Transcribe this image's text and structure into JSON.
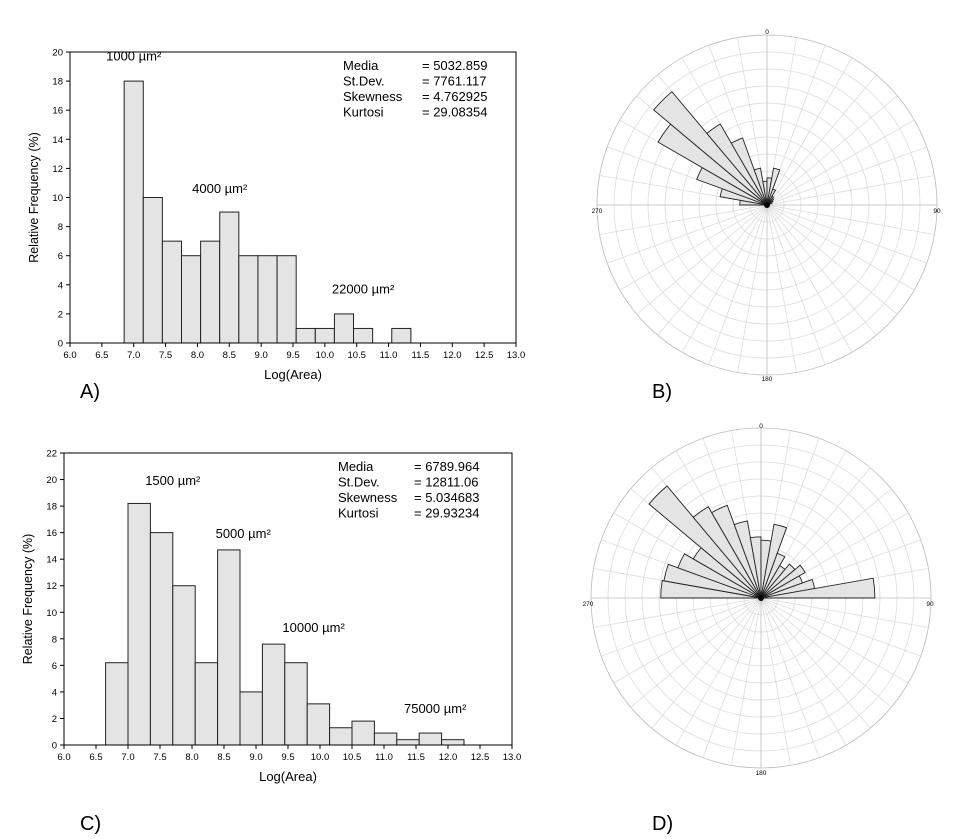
{
  "chart_data": [
    {
      "panel": "A)",
      "type": "bar",
      "xlabel": "Log(Area)",
      "ylabel": "Relative Frequency (%)",
      "xlim": [
        6.0,
        13.0
      ],
      "ylim": [
        0,
        20
      ],
      "xticks": [
        "6.0",
        "6.5",
        "7.0",
        "7.5",
        "8.0",
        "8.5",
        "9.0",
        "9.5",
        "10.0",
        "10.5",
        "11.0",
        "11.5",
        "12.0",
        "12.5",
        "13.0"
      ],
      "yticks": [
        "0",
        "2",
        "4",
        "6",
        "8",
        "10",
        "12",
        "14",
        "16",
        "18",
        "20"
      ],
      "bins": [
        {
          "x0": 6.85,
          "x1": 7.15,
          "value": 18
        },
        {
          "x0": 7.15,
          "x1": 7.45,
          "value": 10
        },
        {
          "x0": 7.45,
          "x1": 7.75,
          "value": 7
        },
        {
          "x0": 7.75,
          "x1": 8.05,
          "value": 6
        },
        {
          "x0": 8.05,
          "x1": 8.35,
          "value": 7
        },
        {
          "x0": 8.35,
          "x1": 8.65,
          "value": 9
        },
        {
          "x0": 8.65,
          "x1": 8.95,
          "value": 6
        },
        {
          "x0": 8.95,
          "x1": 9.25,
          "value": 6
        },
        {
          "x0": 9.25,
          "x1": 9.55,
          "value": 6
        },
        {
          "x0": 9.55,
          "x1": 9.85,
          "value": 1
        },
        {
          "x0": 9.85,
          "x1": 10.15,
          "value": 1
        },
        {
          "x0": 10.15,
          "x1": 10.45,
          "value": 2
        },
        {
          "x0": 10.45,
          "x1": 10.75,
          "value": 1
        },
        {
          "x0": 10.75,
          "x1": 11.05,
          "value": 0
        },
        {
          "x0": 11.05,
          "x1": 11.35,
          "value": 1
        }
      ],
      "annotations": [
        {
          "text": "1000 µm²",
          "x": 7.0,
          "y": 19.4
        },
        {
          "text": "4000 µm²",
          "x": 8.35,
          "y": 10.3
        },
        {
          "text": "22000 µm²",
          "x": 10.6,
          "y": 3.4
        }
      ],
      "stats": [
        {
          "label": "Media",
          "value": "= 5032.859"
        },
        {
          "label": "St.Dev.",
          "value": "= 7761.117"
        },
        {
          "label": "Skewness",
          "value": "= 4.762925"
        },
        {
          "label": "Kurtosi",
          "value": "= 29.08354"
        }
      ]
    },
    {
      "panel": "B)",
      "type": "rose",
      "direction_labels": [
        "0",
        "90",
        "180",
        "270"
      ],
      "ring_count": 10,
      "sector_width_deg": 10,
      "radial_max": 1.0,
      "sectors": [
        {
          "center_deg": 275,
          "value": 0.16
        },
        {
          "center_deg": 285,
          "value": 0.28
        },
        {
          "center_deg": 295,
          "value": 0.44
        },
        {
          "center_deg": 305,
          "value": 0.74
        },
        {
          "center_deg": 315,
          "value": 0.87
        },
        {
          "center_deg": 325,
          "value": 0.55
        },
        {
          "center_deg": 335,
          "value": 0.42
        },
        {
          "center_deg": 345,
          "value": 0.22
        },
        {
          "center_deg": 355,
          "value": 0.14
        },
        {
          "center_deg": 5,
          "value": 0.16
        },
        {
          "center_deg": 15,
          "value": 0.22
        },
        {
          "center_deg": 25,
          "value": 0.1
        },
        {
          "center_deg": 35,
          "value": 0.06
        },
        {
          "center_deg": 45,
          "value": 0.05
        },
        {
          "center_deg": 55,
          "value": 0.04
        },
        {
          "center_deg": 65,
          "value": 0.03
        }
      ]
    },
    {
      "panel": "C)",
      "type": "bar",
      "xlabel": "Log(Area)",
      "ylabel": "Relative Frequency (%)",
      "xlim": [
        6.0,
        13.0
      ],
      "ylim": [
        0,
        22
      ],
      "xticks": [
        "6.0",
        "6.5",
        "7.0",
        "7.5",
        "8.0",
        "8.5",
        "9.0",
        "9.5",
        "10.0",
        "10.5",
        "11.0",
        "11.5",
        "12.0",
        "12.5",
        "13.0"
      ],
      "yticks": [
        "0",
        "2",
        "4",
        "6",
        "8",
        "10",
        "12",
        "14",
        "16",
        "18",
        "20",
        "22"
      ],
      "bins": [
        {
          "x0": 6.65,
          "x1": 7.0,
          "value": 6.2
        },
        {
          "x0": 7.0,
          "x1": 7.35,
          "value": 18.2
        },
        {
          "x0": 7.35,
          "x1": 7.7,
          "value": 16.0
        },
        {
          "x0": 7.7,
          "x1": 8.05,
          "value": 12.0
        },
        {
          "x0": 8.05,
          "x1": 8.4,
          "value": 6.2
        },
        {
          "x0": 8.4,
          "x1": 8.75,
          "value": 14.7
        },
        {
          "x0": 8.75,
          "x1": 9.1,
          "value": 4.0
        },
        {
          "x0": 9.1,
          "x1": 9.45,
          "value": 7.6
        },
        {
          "x0": 9.45,
          "x1": 9.8,
          "value": 6.2
        },
        {
          "x0": 9.8,
          "x1": 10.15,
          "value": 3.1
        },
        {
          "x0": 10.15,
          "x1": 10.5,
          "value": 1.3
        },
        {
          "x0": 10.5,
          "x1": 10.85,
          "value": 1.8
        },
        {
          "x0": 10.85,
          "x1": 11.2,
          "value": 0.9
        },
        {
          "x0": 11.2,
          "x1": 11.55,
          "value": 0.4
        },
        {
          "x0": 11.55,
          "x1": 11.9,
          "value": 0.9
        },
        {
          "x0": 11.9,
          "x1": 12.25,
          "value": 0.4
        }
      ],
      "annotations": [
        {
          "text": "1500 µm²",
          "x": 7.7,
          "y": 19.6
        },
        {
          "text": "5000 µm²",
          "x": 8.8,
          "y": 15.6
        },
        {
          "text": "10000 µm²",
          "x": 9.9,
          "y": 8.5
        },
        {
          "text": "75000 µm²",
          "x": 11.8,
          "y": 2.4
        }
      ],
      "stats": [
        {
          "label": "Media",
          "value": "= 6789.964"
        },
        {
          "label": "St.Dev.",
          "value": "= 12811.06"
        },
        {
          "label": "Skewness",
          "value": "= 5.034683"
        },
        {
          "label": "Kurtosi",
          "value": "= 29.93234"
        }
      ]
    },
    {
      "panel": "D)",
      "type": "rose",
      "direction_labels": [
        "0",
        "90",
        "180",
        "270"
      ],
      "ring_count": 10,
      "sector_width_deg": 10,
      "radial_max": 1.0,
      "sectors": [
        {
          "center_deg": 275,
          "value": 0.59
        },
        {
          "center_deg": 285,
          "value": 0.58
        },
        {
          "center_deg": 295,
          "value": 0.52
        },
        {
          "center_deg": 305,
          "value": 0.46
        },
        {
          "center_deg": 315,
          "value": 0.86
        },
        {
          "center_deg": 325,
          "value": 0.62
        },
        {
          "center_deg": 335,
          "value": 0.58
        },
        {
          "center_deg": 345,
          "value": 0.46
        },
        {
          "center_deg": 355,
          "value": 0.36
        },
        {
          "center_deg": 5,
          "value": 0.34
        },
        {
          "center_deg": 15,
          "value": 0.44
        },
        {
          "center_deg": 25,
          "value": 0.28
        },
        {
          "center_deg": 35,
          "value": 0.22
        },
        {
          "center_deg": 45,
          "value": 0.26
        },
        {
          "center_deg": 55,
          "value": 0.3
        },
        {
          "center_deg": 65,
          "value": 0.26
        },
        {
          "center_deg": 75,
          "value": 0.32
        },
        {
          "center_deg": 85,
          "value": 0.67
        }
      ]
    }
  ],
  "colors": {
    "bar_fill": "#e4e4e4",
    "bar_stroke": "#222222",
    "axis": "#000000",
    "polar_grid": "#dddddd",
    "polar_axis": "#bbbbbb"
  }
}
